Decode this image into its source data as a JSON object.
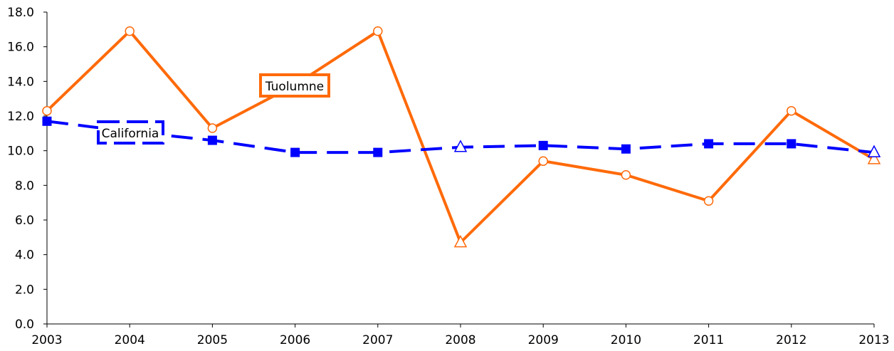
{
  "chart_data": {
    "type": "line",
    "title": "",
    "xlabel": "",
    "ylabel": "",
    "categories": [
      "2003",
      "2004",
      "2005",
      "2006",
      "2007",
      "2008",
      "2009",
      "2010",
      "2011",
      "2012",
      "2013"
    ],
    "ylim": [
      0,
      18
    ],
    "y_ticks": [
      "0.0",
      "2.0",
      "4.0",
      "6.0",
      "8.0",
      "10.0",
      "12.0",
      "14.0",
      "16.0",
      "18.0"
    ],
    "grid": false,
    "series": [
      {
        "name": "Tuolumne",
        "color": "#ff6a0a",
        "line_style": "solid",
        "marker": "circle-open",
        "values": [
          12.3,
          16.9,
          11.3,
          13.8,
          16.9,
          4.7,
          9.4,
          8.6,
          7.1,
          12.3,
          9.5
        ],
        "triangle_marker_at": [
          "2008",
          "2013"
        ]
      },
      {
        "name": "California",
        "color": "#0000ff",
        "line_style": "dashed",
        "marker": "square-filled",
        "values": [
          11.7,
          11.1,
          10.6,
          9.9,
          9.9,
          10.2,
          10.3,
          10.1,
          10.4,
          10.4,
          9.9
        ],
        "triangle_marker_at": [
          "2008",
          "2013"
        ]
      }
    ]
  }
}
